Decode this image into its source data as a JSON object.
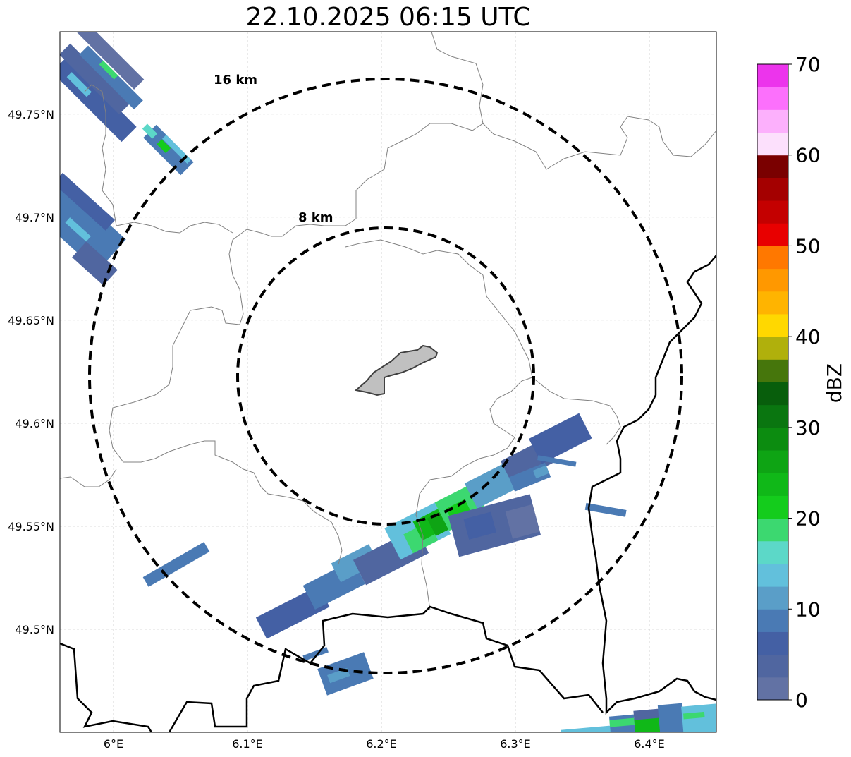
{
  "title": "22.10.2025 06:15 UTC",
  "map": {
    "lon_range": [
      5.96,
      6.45
    ],
    "lat_range": [
      49.45,
      49.79
    ],
    "lon_ticks": [
      {
        "value": 6.0,
        "label": "6°E"
      },
      {
        "value": 6.1,
        "label": "6.1°E"
      },
      {
        "value": 6.2,
        "label": "6.2°E"
      },
      {
        "value": 6.3,
        "label": "6.3°E"
      },
      {
        "value": 6.4,
        "label": "6.4°E"
      }
    ],
    "lat_ticks": [
      {
        "value": 49.75,
        "label": "49.75°N"
      },
      {
        "value": 49.7,
        "label": "49.7°N"
      },
      {
        "value": 49.65,
        "label": "49.65°N"
      },
      {
        "value": 49.6,
        "label": "49.6°N"
      },
      {
        "value": 49.55,
        "label": "49.55°N"
      },
      {
        "value": 49.5,
        "label": "49.5°N"
      }
    ],
    "grid": true,
    "range_rings": [
      {
        "label": "8 km",
        "radius_km": 8
      },
      {
        "label": "16 km",
        "radius_km": 16
      }
    ]
  },
  "colorbar": {
    "unit": "dBZ",
    "min": 0,
    "max": 70,
    "step": 2.5,
    "tick_labels": [
      "0",
      "10",
      "20",
      "30",
      "40",
      "50",
      "60",
      "70"
    ],
    "colors": [
      "#6272a4",
      "#5066a0",
      "#4460a4",
      "#4a7ab4",
      "#5a9ec8",
      "#62c0dc",
      "#5cd8c8",
      "#3cd870",
      "#14cc1c",
      "#10b818",
      "#0ea414",
      "#0c8c10",
      "#0a7610",
      "#085e0c",
      "#46760c",
      "#b0b00c",
      "#ffd800",
      "#ffb400",
      "#ff9800",
      "#ff7800",
      "#e80000",
      "#c40000",
      "#a40000",
      "#7a0000",
      "#fce0fc",
      "#fcb0fc",
      "#fc70fc",
      "#ec34ec"
    ]
  }
}
